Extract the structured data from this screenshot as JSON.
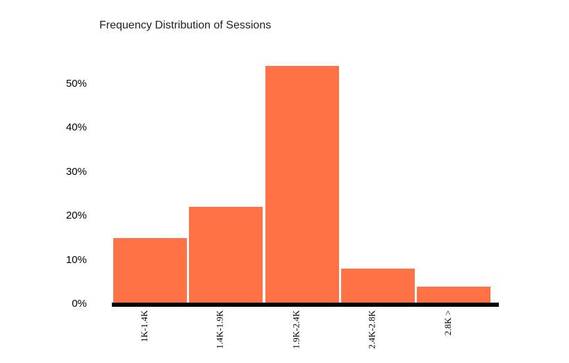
{
  "title": "Frequency Distribution of Sessions",
  "chart_data": {
    "type": "bar",
    "title": "Frequency Distribution of Sessions",
    "categories": [
      "1K-1.4K",
      "1.4K-1.9K",
      "1.9K-2.4K",
      "2.4K-2.8K",
      "2.8K >"
    ],
    "values": [
      15,
      22,
      54,
      8,
      4
    ],
    "unit": "%",
    "xlabel": "",
    "ylabel": "",
    "yticks": [
      "0%",
      "10%",
      "20%",
      "30%",
      "40%",
      "50%"
    ],
    "ylim": [
      0,
      57
    ],
    "grid": false,
    "legend": false,
    "x_label_rotation": -90,
    "bar_color": "#ff7246",
    "axis_color": "#000000",
    "title_color": "#212121",
    "tick_color": "#000000"
  }
}
